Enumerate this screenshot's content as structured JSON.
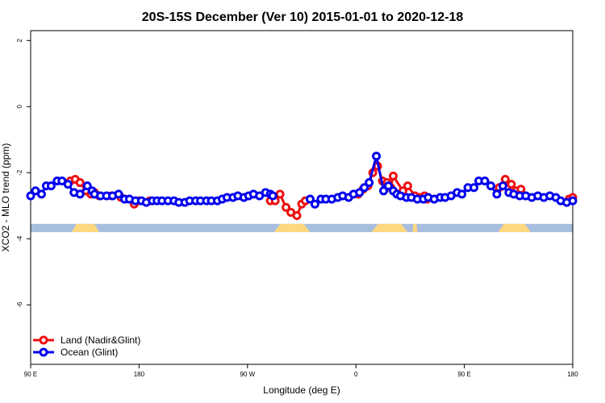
{
  "chart_data": {
    "type": "line",
    "title": "20S-15S December (Ver 10)   2015-01-01 to 2020-12-18",
    "xlabel": "Longitude (deg E)",
    "ylabel": "XCO2 - MLO trend (ppm)",
    "xlim": [
      90,
      540
    ],
    "ylim": [
      -7.8,
      2.3
    ],
    "x_ticks": [
      {
        "value": 90,
        "label": "90 E"
      },
      {
        "value": 180,
        "label": "180"
      },
      {
        "value": 270,
        "label": "90 W"
      },
      {
        "value": 360,
        "label": "0"
      },
      {
        "value": 450,
        "label": "90 E"
      },
      {
        "value": 540,
        "label": "180"
      }
    ],
    "y_ticks": [
      {
        "value": 2,
        "label": "2"
      },
      {
        "value": 0,
        "label": "0"
      },
      {
        "value": -2,
        "label": "-2"
      },
      {
        "value": -4,
        "label": "-4"
      },
      {
        "value": -6,
        "label": "-6"
      }
    ],
    "grid": false,
    "legend_position": "bottom-left",
    "surface_band": {
      "y_range": [
        -3.8,
        -3.55
      ],
      "ocean_color": "#a8bedf",
      "land_color": "#fed880",
      "land_segments": [
        [
          124,
          147
        ],
        [
          292,
          322
        ],
        [
          373,
          403
        ],
        [
          407,
          411
        ],
        [
          478,
          505
        ]
      ]
    },
    "series": [
      {
        "name": "Land (Nadir&Glint)",
        "color": "#ee1111",
        "x": [
          123,
          127,
          131,
          136,
          140,
          143,
          147,
          157,
          165,
          176,
          180,
          189,
          289,
          293,
          297,
          302,
          306,
          311,
          315,
          318,
          362,
          366,
          370,
          374,
          378,
          382,
          386,
          389,
          391,
          399,
          403,
          409,
          413,
          417,
          419,
          479,
          484,
          489,
          493,
          497,
          501,
          516,
          537,
          540
        ],
        "y": [
          -2.25,
          -2.2,
          -2.3,
          -2.55,
          -2.65,
          -2.6,
          -2.7,
          -2.7,
          -2.75,
          -2.95,
          -2.85,
          -2.85,
          -2.85,
          -2.85,
          -2.65,
          -3.05,
          -3.2,
          -3.3,
          -2.95,
          -2.85,
          -2.65,
          -2.5,
          -2.4,
          -2.0,
          -1.8,
          -2.25,
          -2.3,
          -2.45,
          -2.1,
          -2.55,
          -2.4,
          -2.7,
          -2.75,
          -2.7,
          -2.8,
          -2.45,
          -2.2,
          -2.35,
          -2.55,
          -2.5,
          -2.7,
          -2.75,
          -2.8,
          -2.75
        ]
      },
      {
        "name": "Ocean (Glint)",
        "color": "#0000ee",
        "x": [
          90,
          94,
          99,
          103,
          107,
          112,
          116,
          121,
          126,
          131,
          137,
          141,
          143,
          148,
          153,
          158,
          163,
          168,
          172,
          177,
          182,
          186,
          191,
          195,
          199,
          204,
          209,
          213,
          218,
          222,
          227,
          231,
          236,
          240,
          245,
          249,
          253,
          258,
          262,
          267,
          271,
          275,
          280,
          285,
          289,
          291,
          322,
          326,
          331,
          335,
          340,
          345,
          349,
          354,
          358,
          363,
          367,
          371,
          377,
          383,
          387,
          391,
          394,
          397,
          402,
          406,
          411,
          416,
          420,
          425,
          430,
          434,
          439,
          444,
          448,
          453,
          458,
          462,
          467,
          472,
          477,
          482,
          487,
          491,
          496,
          501,
          506,
          511,
          516,
          521,
          526,
          530,
          535,
          540
        ],
        "y": [
          -2.7,
          -2.55,
          -2.65,
          -2.4,
          -2.4,
          -2.25,
          -2.25,
          -2.35,
          -2.6,
          -2.65,
          -2.4,
          -2.55,
          -2.65,
          -2.7,
          -2.7,
          -2.7,
          -2.65,
          -2.8,
          -2.8,
          -2.85,
          -2.85,
          -2.9,
          -2.85,
          -2.85,
          -2.85,
          -2.85,
          -2.85,
          -2.9,
          -2.9,
          -2.85,
          -2.85,
          -2.85,
          -2.85,
          -2.85,
          -2.85,
          -2.8,
          -2.75,
          -2.75,
          -2.7,
          -2.75,
          -2.7,
          -2.65,
          -2.7,
          -2.6,
          -2.65,
          -2.7,
          -2.8,
          -2.95,
          -2.8,
          -2.8,
          -2.8,
          -2.75,
          -2.7,
          -2.75,
          -2.65,
          -2.6,
          -2.45,
          -2.3,
          -1.5,
          -2.55,
          -2.4,
          -2.55,
          -2.65,
          -2.7,
          -2.75,
          -2.75,
          -2.8,
          -2.8,
          -2.75,
          -2.8,
          -2.75,
          -2.75,
          -2.7,
          -2.6,
          -2.65,
          -2.45,
          -2.45,
          -2.25,
          -2.25,
          -2.4,
          -2.65,
          -2.4,
          -2.6,
          -2.65,
          -2.7,
          -2.7,
          -2.75,
          -2.7,
          -2.75,
          -2.7,
          -2.75,
          -2.85,
          -2.9,
          -2.85
        ]
      }
    ]
  }
}
